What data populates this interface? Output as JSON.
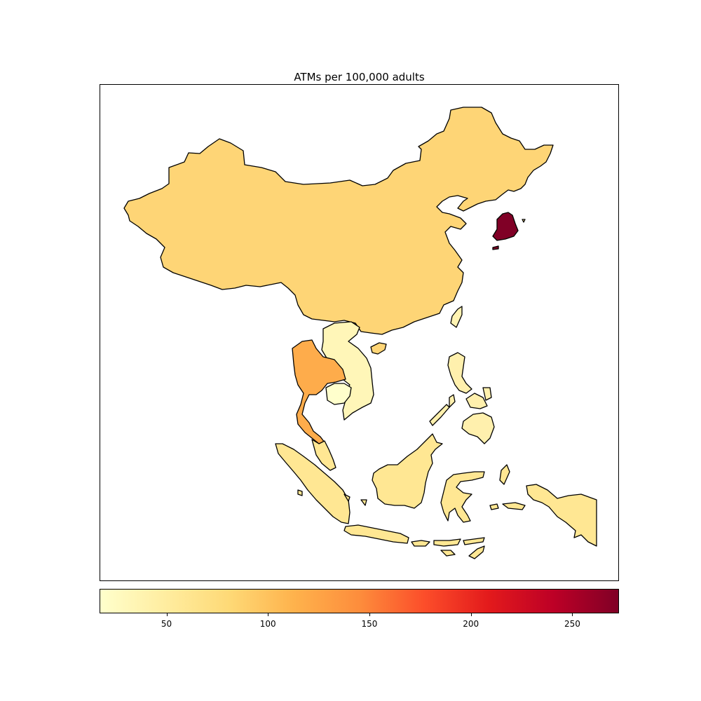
{
  "title": "ATMs per 100,000 adults",
  "colorbar": {
    "min": 17,
    "max": 273,
    "ticks": [
      "50",
      "100",
      "150",
      "200",
      "250"
    ],
    "tick_values": [
      50,
      100,
      150,
      200,
      250
    ],
    "colormap": "YlOrRd",
    "stops": [
      "#ffffcc",
      "#ffeda0",
      "#fed976",
      "#feb24c",
      "#fd8d3c",
      "#fc4e2a",
      "#e31a1c",
      "#bd0026",
      "#800026"
    ]
  },
  "chart_data": {
    "type": "choropleth",
    "title": "ATMs per 100,000 adults",
    "regions": [
      {
        "name": "China",
        "value": 81
      },
      {
        "name": "South Korea",
        "value": 273
      },
      {
        "name": "Thailand",
        "value": 115
      },
      {
        "name": "Vietnam",
        "value": 25
      },
      {
        "name": "Laos",
        "value": 25
      },
      {
        "name": "Cambodia",
        "value": 17
      },
      {
        "name": "Malaysia",
        "value": 53
      },
      {
        "name": "Indonesia",
        "value": 53
      },
      {
        "name": "Philippines",
        "value": 30
      },
      {
        "name": "Taiwan",
        "value": 40
      }
    ],
    "colorbar_range": [
      17,
      273
    ],
    "colorbar_ticks": [
      50,
      100,
      150,
      200,
      250
    ]
  },
  "colors": {
    "border": "#000000",
    "china": "#fed576",
    "south_korea": "#800026",
    "thailand": "#feac4b",
    "vietnam_laos": "#fff6b8",
    "cambodia": "#ffffcc",
    "malaysia_indonesia": "#ffe793",
    "philippines": "#fff0ad",
    "taiwan": "#fff3b2"
  }
}
